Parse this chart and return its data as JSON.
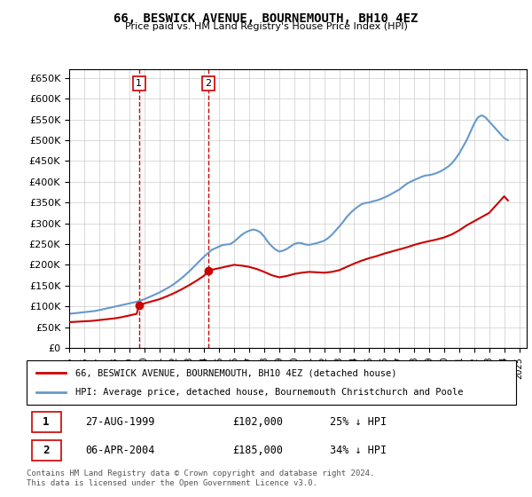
{
  "title": "66, BESWICK AVENUE, BOURNEMOUTH, BH10 4EZ",
  "subtitle": "Price paid vs. HM Land Registry's House Price Index (HPI)",
  "legend_line1": "66, BESWICK AVENUE, BOURNEMOUTH, BH10 4EZ (detached house)",
  "legend_line2": "HPI: Average price, detached house, Bournemouth Christchurch and Poole",
  "table_row1": [
    "1",
    "27-AUG-1999",
    "£102,000",
    "25% ↓ HPI"
  ],
  "table_row2": [
    "2",
    "06-APR-2004",
    "£185,000",
    "34% ↓ HPI"
  ],
  "footer": "Contains HM Land Registry data © Crown copyright and database right 2024.\nThis data is licensed under the Open Government Licence v3.0.",
  "sale_color": "#cc0000",
  "hpi_color": "#6699cc",
  "marker1_date": 1999.65,
  "marker1_price": 102000,
  "marker2_date": 2004.27,
  "marker2_price": 185000,
  "ylim": [
    0,
    670000
  ],
  "xlim": [
    1995,
    2025.5
  ],
  "yticks": [
    0,
    50000,
    100000,
    150000,
    200000,
    250000,
    300000,
    350000,
    400000,
    450000,
    500000,
    550000,
    600000,
    650000
  ],
  "xticks": [
    1995,
    1996,
    1997,
    1998,
    1999,
    2000,
    2001,
    2002,
    2003,
    2004,
    2005,
    2006,
    2007,
    2008,
    2009,
    2010,
    2011,
    2012,
    2013,
    2014,
    2015,
    2016,
    2017,
    2018,
    2019,
    2020,
    2021,
    2022,
    2023,
    2024,
    2025
  ],
  "hpi_x": [
    1995,
    1995.25,
    1995.5,
    1995.75,
    1996,
    1996.25,
    1996.5,
    1996.75,
    1997,
    1997.25,
    1997.5,
    1997.75,
    1998,
    1998.25,
    1998.5,
    1998.75,
    1999,
    1999.25,
    1999.5,
    1999.75,
    2000,
    2000.25,
    2000.5,
    2000.75,
    2001,
    2001.25,
    2001.5,
    2001.75,
    2002,
    2002.25,
    2002.5,
    2002.75,
    2003,
    2003.25,
    2003.5,
    2003.75,
    2004,
    2004.25,
    2004.5,
    2004.75,
    2005,
    2005.25,
    2005.5,
    2005.75,
    2006,
    2006.25,
    2006.5,
    2006.75,
    2007,
    2007.25,
    2007.5,
    2007.75,
    2008,
    2008.25,
    2008.5,
    2008.75,
    2009,
    2009.25,
    2009.5,
    2009.75,
    2010,
    2010.25,
    2010.5,
    2010.75,
    2011,
    2011.25,
    2011.5,
    2011.75,
    2012,
    2012.25,
    2012.5,
    2012.75,
    2013,
    2013.25,
    2013.5,
    2013.75,
    2014,
    2014.25,
    2014.5,
    2014.75,
    2015,
    2015.25,
    2015.5,
    2015.75,
    2016,
    2016.25,
    2016.5,
    2016.75,
    2017,
    2017.25,
    2017.5,
    2017.75,
    2018,
    2018.25,
    2018.5,
    2018.75,
    2019,
    2019.25,
    2019.5,
    2019.75,
    2020,
    2020.25,
    2020.5,
    2020.75,
    2021,
    2021.25,
    2021.5,
    2021.75,
    2022,
    2022.25,
    2022.5,
    2022.75,
    2023,
    2023.25,
    2023.5,
    2023.75,
    2024,
    2024.25
  ],
  "hpi_y": [
    82000,
    83000,
    84000,
    85000,
    86000,
    87000,
    88000,
    89000,
    91000,
    93000,
    95000,
    97000,
    99000,
    101000,
    103000,
    105000,
    107000,
    109000,
    111000,
    114000,
    117000,
    121000,
    125000,
    129000,
    133000,
    138000,
    143000,
    148000,
    154000,
    161000,
    168000,
    176000,
    184000,
    193000,
    202000,
    211000,
    220000,
    228000,
    236000,
    240000,
    244000,
    248000,
    249000,
    250000,
    256000,
    264000,
    272000,
    278000,
    282000,
    285000,
    283000,
    278000,
    268000,
    255000,
    245000,
    237000,
    232000,
    234000,
    238000,
    244000,
    250000,
    253000,
    252000,
    249000,
    248000,
    250000,
    252000,
    255000,
    258000,
    264000,
    272000,
    282000,
    292000,
    303000,
    315000,
    325000,
    333000,
    340000,
    346000,
    349000,
    350000,
    353000,
    355000,
    358000,
    362000,
    366000,
    371000,
    376000,
    381000,
    388000,
    395000,
    400000,
    404000,
    408000,
    412000,
    415000,
    416000,
    418000,
    421000,
    425000,
    430000,
    436000,
    444000,
    455000,
    468000,
    484000,
    500000,
    520000,
    540000,
    555000,
    560000,
    555000,
    545000,
    535000,
    525000,
    515000,
    505000,
    500000
  ],
  "sale_x": [
    1995,
    1995.5,
    1996,
    1996.5,
    1997,
    1997.5,
    1998,
    1998.5,
    1999,
    1999.5,
    1999.65,
    2000,
    2000.5,
    2001,
    2001.5,
    2002,
    2002.5,
    2003,
    2003.5,
    2004,
    2004.27,
    2004.5,
    2005,
    2005.5,
    2006,
    2006.5,
    2007,
    2007.5,
    2008,
    2008.5,
    2009,
    2009.5,
    2010,
    2010.5,
    2011,
    2011.5,
    2012,
    2012.5,
    2013,
    2013.5,
    2014,
    2014.5,
    2015,
    2015.5,
    2016,
    2016.5,
    2017,
    2017.5,
    2018,
    2018.5,
    2019,
    2019.5,
    2020,
    2020.5,
    2021,
    2021.5,
    2022,
    2022.5,
    2023,
    2023.5,
    2024,
    2024.25
  ],
  "sale_y": [
    62000,
    63000,
    64000,
    65000,
    67000,
    69000,
    71000,
    74000,
    78000,
    82000,
    102000,
    107000,
    112000,
    117000,
    124000,
    132000,
    141000,
    151000,
    162000,
    174000,
    185000,
    188000,
    192000,
    196000,
    200000,
    198000,
    195000,
    190000,
    183000,
    175000,
    170000,
    173000,
    178000,
    181000,
    183000,
    182000,
    181000,
    183000,
    187000,
    195000,
    203000,
    210000,
    216000,
    221000,
    227000,
    232000,
    237000,
    242000,
    248000,
    253000,
    257000,
    261000,
    266000,
    273000,
    283000,
    295000,
    305000,
    315000,
    325000,
    345000,
    365000,
    355000
  ]
}
